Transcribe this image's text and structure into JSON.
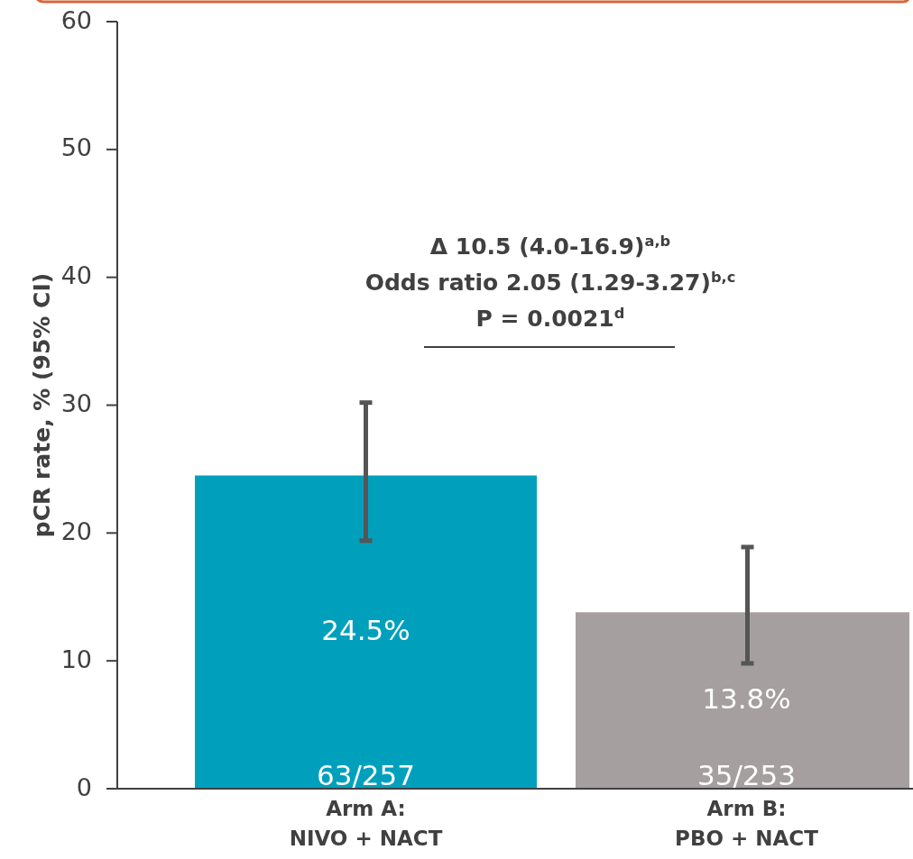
{
  "chart_data": {
    "type": "bar",
    "ylabel": "pCR rate, % (95% CI)",
    "categories": [
      "Arm A:\nNIVO + NACT",
      "Arm B:\nPBO + NACT"
    ],
    "values": [
      24.5,
      13.8
    ],
    "colors": [
      "#00a0bc",
      "#a59f9f"
    ],
    "errors": [
      [
        19.4,
        30.2
      ],
      [
        9.8,
        18.9
      ]
    ],
    "value_labels": [
      "24.5%",
      "13.8%"
    ],
    "ylim": [
      0,
      60
    ],
    "yticks": [
      0,
      10,
      20,
      30,
      40,
      50,
      60
    ],
    "annotations": [
      "Δ 10.5 (4.0-16.9)$^{a,b}$",
      "Odds ratio 2.05 (1.29-3.27)$^{b,c}$",
      "P = 0.0021$^{d}$",
      {
        "text": "63/257",
        "x": "Arm A:\nNIVO + NACT",
        "y": 0
      },
      {
        "text": "35/253",
        "x": "Arm B:\nPBO + NACT",
        "y": 0
      }
    ]
  }
}
